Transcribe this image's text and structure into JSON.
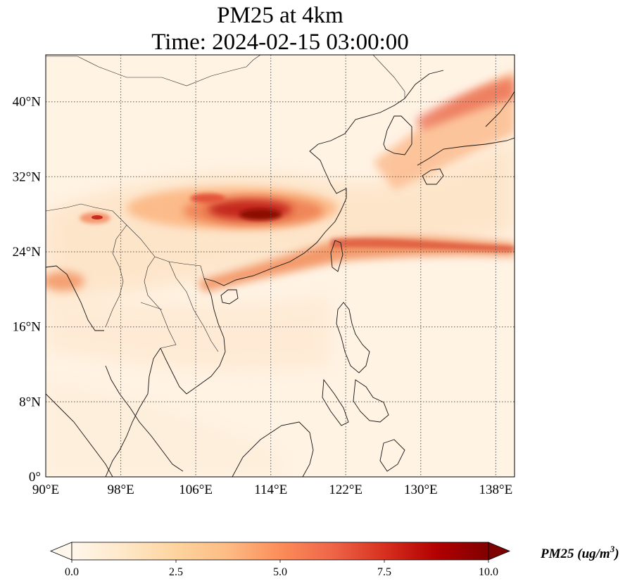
{
  "map": {
    "title_line1": "PM25 at 4km",
    "title_line2": "Time: 2024-02-15 03:00:00",
    "region": "East and Southeast Asia",
    "projection": "PlateCarree",
    "lon_range": [
      90,
      140
    ],
    "lat_range": [
      0,
      45
    ],
    "gridlines": true,
    "lon_ticks": [
      "90°E",
      "98°E",
      "106°E",
      "114°E",
      "122°E",
      "130°E",
      "138°E"
    ],
    "lat_ticks": [
      "0°",
      "8°N",
      "16°N",
      "24°N",
      "32°N",
      "40°N"
    ],
    "colormap": "OrRd",
    "colors": [
      "#fff7ec",
      "#fee8c8",
      "#fdd49e",
      "#fdbb84",
      "#fc8d59",
      "#ef6548",
      "#d7301f",
      "#b30000",
      "#7f0000"
    ]
  },
  "colorbar": {
    "ticks": [
      "0.0",
      "2.5",
      "5.0",
      "7.5",
      "10.0"
    ],
    "range": [
      0,
      10
    ],
    "extend": "both",
    "label_main": "PM25 (ug/m",
    "label_sup": "3",
    "label_close": ")"
  }
}
